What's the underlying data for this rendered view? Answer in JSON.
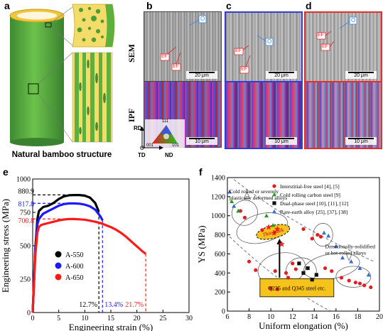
{
  "panel_labels": {
    "a": "a",
    "b": "b",
    "c": "c",
    "d": "d",
    "e": "e",
    "f": "f"
  },
  "panel_a": {
    "caption": "Natural bamboo structure"
  },
  "micrographs": {
    "row_labels": {
      "sem": "SEM",
      "ipf": "IPF"
    },
    "sem_scale": "20 μm",
    "ipf_scale": "10 μm",
    "sem_tags": {
      "o": "O",
      "ef": "EF"
    },
    "ipf_key": {
      "top": "111",
      "left": "001",
      "right": "101"
    },
    "axes": {
      "rd": "RD",
      "td": "TD",
      "nd": "ND"
    },
    "frame_colors": {
      "b": "#444444",
      "c": "#3a3ad0",
      "d": "#e03030"
    }
  },
  "chart_data": [
    {
      "type": "line",
      "xlabel": "Engineering strain (%)",
      "ylabel": "Engineering stress (MPa)",
      "xlim": [
        0,
        30
      ],
      "ylim": [
        0,
        1000
      ],
      "xticks": [
        "0",
        "5",
        "10",
        "15",
        "20",
        "25",
        "30"
      ],
      "yticks": [
        "0",
        "250",
        "500",
        "750",
        "1000"
      ],
      "annotations_stress": [
        "880.9",
        "817.8",
        "700.8"
      ],
      "annotations_strain": [
        "12.7%",
        "13.4%",
        "21.7%"
      ],
      "series": [
        {
          "name": "A-550",
          "color": "#000000",
          "x": [
            0,
            0.5,
            0.9,
            1.2,
            1.6,
            2,
            3,
            4,
            5,
            6,
            7,
            8,
            9,
            10,
            11,
            12,
            12.7
          ],
          "y": [
            0,
            480,
            700,
            760,
            775,
            790,
            800,
            820,
            850,
            870,
            878,
            880,
            880,
            875,
            860,
            820,
            755
          ]
        },
        {
          "name": "A-600",
          "color": "#1a1aff",
          "x": [
            0,
            0.5,
            0.9,
            1.2,
            1.6,
            2,
            3,
            4,
            5,
            6,
            7,
            8,
            9,
            10,
            11,
            12,
            13,
            13.4
          ],
          "y": [
            0,
            460,
            660,
            700,
            720,
            740,
            760,
            780,
            800,
            812,
            817,
            817,
            815,
            808,
            795,
            770,
            720,
            690
          ]
        },
        {
          "name": "A-650",
          "color": "#ff1a1a",
          "x": [
            0,
            0.5,
            0.9,
            1.2,
            1.6,
            2,
            3,
            4,
            5,
            6,
            7,
            8,
            9,
            10,
            11,
            12,
            13,
            14,
            15,
            16,
            17,
            18,
            19,
            20,
            21,
            21.7
          ],
          "y": [
            0,
            430,
            600,
            640,
            655,
            660,
            670,
            680,
            690,
            697,
            700,
            700,
            698,
            695,
            688,
            680,
            670,
            655,
            640,
            620,
            595,
            565,
            530,
            495,
            460,
            440
          ]
        }
      ]
    },
    {
      "type": "scatter",
      "xlabel": "Uniform elongation (%)",
      "ylabel": "YS (MPa)",
      "xlim": [
        6,
        20
      ],
      "ylim": [
        0,
        1400
      ],
      "xticks": [
        "6",
        "8",
        "10",
        "12",
        "14",
        "16",
        "18",
        "20"
      ],
      "yticks": [
        "0",
        "200",
        "400",
        "600",
        "800",
        "1000",
        "1200",
        "1400"
      ],
      "legend": [
        {
          "label": "Interstitial-free steel [4], [5]",
          "color": "#e02020",
          "marker": "circle"
        },
        {
          "label": "Cold rolling carbon steel [9]",
          "color": "#20a020",
          "marker": "triangle"
        },
        {
          "label": "Dual-phase steel [10], [11], [12]",
          "color": "#111111",
          "marker": "square"
        },
        {
          "label": "Rare-earth alloy [25], [37], [38]",
          "color": "#3a6ad0",
          "marker": "triangle"
        }
      ],
      "annotations": [
        "Cold rolled or severely plastically deformed alloys",
        "This Work",
        "Directionally-solidified or hot-rolled alloys",
        "Q235 and Q345 steel etc."
      ],
      "series": [
        {
          "name": "Interstitial-free steel [4], [5]",
          "marker": "circle",
          "color": "#e02020",
          "x": [
            7.2,
            7.6,
            8.0,
            8.6,
            9.2,
            10.4,
            11.4,
            12.0,
            13.0,
            13.8,
            14.3,
            14.6,
            15.0,
            15.6,
            16.5,
            17.2,
            17.8,
            18.2,
            18.6,
            19.2,
            10.0,
            10.6,
            11.6,
            12.3
          ],
          "y": [
            1050,
            980,
            520,
            430,
            850,
            420,
            400,
            500,
            860,
            760,
            800,
            780,
            450,
            420,
            350,
            320,
            300,
            290,
            270,
            250,
            240,
            230,
            350,
            440
          ]
        },
        {
          "name": "Cold rolling carbon steel [9]",
          "marker": "triangle",
          "color": "#20a020",
          "x": [
            6.4,
            7.0,
            9.6,
            10.2
          ],
          "y": [
            1150,
            1050,
            1000,
            900
          ]
        },
        {
          "name": "Dual-phase steel [10], [11], [12]",
          "marker": "square",
          "color": "#111111",
          "x": [
            12.6,
            13.0,
            13.4,
            13.8,
            14.2
          ],
          "y": [
            500,
            400,
            450,
            330,
            380
          ]
        },
        {
          "name": "Rare-earth alloy [25], [37], [38]",
          "marker": "triangle",
          "color": "#3a6ad0",
          "x": [
            6.2,
            6.6,
            14.9,
            15.3,
            16.0,
            16.6,
            17.4,
            18.2,
            19.0
          ],
          "y": [
            1250,
            1100,
            820,
            790,
            680,
            560,
            520,
            450,
            380
          ]
        },
        {
          "name": "This Work",
          "marker": "star",
          "color": "#ff2020",
          "x": [
            9.8,
            10.3,
            10.6,
            11.0
          ],
          "y": [
            880,
            818,
            860,
            701
          ]
        }
      ]
    }
  ]
}
